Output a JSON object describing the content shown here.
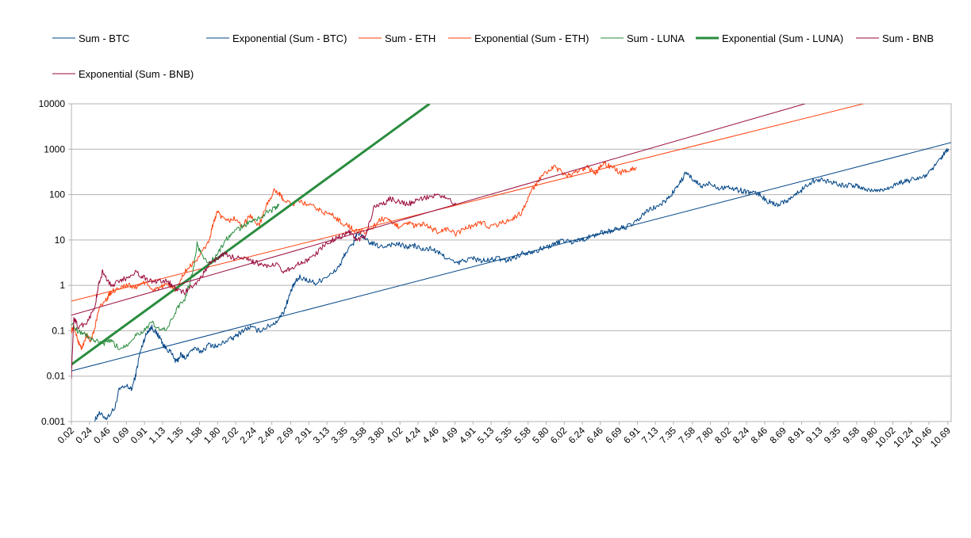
{
  "chart_data": {
    "type": "line",
    "title": "",
    "xlabel": "",
    "ylabel": "",
    "y_scale": "log",
    "ylim": [
      0.001,
      10000
    ],
    "xlim": [
      0.02,
      10.73
    ],
    "grid": "horizontal",
    "legend_position": "top",
    "y_ticks": [
      "0.001",
      "0.01",
      "0.1",
      "1",
      "10",
      "100",
      "1000",
      "10000"
    ],
    "x_ticks": [
      "0.02",
      "0.24",
      "0.46",
      "0.69",
      "0.91",
      "1.13",
      "1.35",
      "1.58",
      "1.80",
      "2.02",
      "2.24",
      "2.46",
      "2.69",
      "2.91",
      "3.13",
      "3.35",
      "3.58",
      "3.80",
      "4.02",
      "4.24",
      "4.46",
      "4.69",
      "4.91",
      "5.13",
      "5.35",
      "5.58",
      "5.80",
      "6.02",
      "6.24",
      "6.46",
      "6.69",
      "6.91",
      "7.13",
      "7.35",
      "7.58",
      "7.80",
      "8.02",
      "8.24",
      "8.46",
      "8.69",
      "8.91",
      "9.13",
      "9.35",
      "9.58",
      "9.80",
      "10.02",
      "10.24",
      "10.46",
      "10.69"
    ],
    "series": [
      {
        "name": "Sum - BTC",
        "color": "#004586",
        "kind": "data",
        "points": [
          [
            0.3,
            0.001
          ],
          [
            0.35,
            0.0015
          ],
          [
            0.45,
            0.0012
          ],
          [
            0.55,
            0.002
          ],
          [
            0.6,
            0.005
          ],
          [
            0.7,
            0.006
          ],
          [
            0.75,
            0.005
          ],
          [
            0.8,
            0.01
          ],
          [
            0.85,
            0.03
          ],
          [
            0.9,
            0.06
          ],
          [
            0.95,
            0.1
          ],
          [
            1.0,
            0.12
          ],
          [
            1.05,
            0.09
          ],
          [
            1.1,
            0.07
          ],
          [
            1.15,
            0.045
          ],
          [
            1.22,
            0.035
          ],
          [
            1.3,
            0.02
          ],
          [
            1.35,
            0.03
          ],
          [
            1.4,
            0.025
          ],
          [
            1.5,
            0.04
          ],
          [
            1.6,
            0.035
          ],
          [
            1.7,
            0.05
          ],
          [
            1.8,
            0.045
          ],
          [
            1.9,
            0.06
          ],
          [
            2.0,
            0.07
          ],
          [
            2.1,
            0.1
          ],
          [
            2.2,
            0.12
          ],
          [
            2.3,
            0.1
          ],
          [
            2.4,
            0.12
          ],
          [
            2.5,
            0.15
          ],
          [
            2.6,
            0.25
          ],
          [
            2.65,
            0.45
          ],
          [
            2.7,
            0.8
          ],
          [
            2.75,
            1.2
          ],
          [
            2.8,
            1.5
          ],
          [
            2.9,
            1.3
          ],
          [
            3.0,
            1.1
          ],
          [
            3.1,
            1.5
          ],
          [
            3.2,
            1.8
          ],
          [
            3.3,
            3
          ],
          [
            3.35,
            5
          ],
          [
            3.45,
            8
          ],
          [
            3.5,
            15
          ],
          [
            3.6,
            10
          ],
          [
            3.7,
            8
          ],
          [
            3.8,
            7
          ],
          [
            3.9,
            8
          ],
          [
            4.0,
            8
          ],
          [
            4.1,
            7
          ],
          [
            4.2,
            7.5
          ],
          [
            4.3,
            6
          ],
          [
            4.4,
            6.5
          ],
          [
            4.5,
            5
          ],
          [
            4.6,
            4
          ],
          [
            4.7,
            3
          ],
          [
            4.8,
            3.5
          ],
          [
            4.9,
            4
          ],
          [
            5.0,
            3.5
          ],
          [
            5.1,
            3.5
          ],
          [
            5.2,
            4
          ],
          [
            5.3,
            3.5
          ],
          [
            5.4,
            4
          ],
          [
            5.5,
            5
          ],
          [
            5.6,
            5.5
          ],
          [
            5.7,
            6
          ],
          [
            5.8,
            7
          ],
          [
            5.9,
            8
          ],
          [
            6.0,
            10
          ],
          [
            6.1,
            9
          ],
          [
            6.2,
            10
          ],
          [
            6.3,
            11
          ],
          [
            6.4,
            13
          ],
          [
            6.5,
            15
          ],
          [
            6.6,
            16
          ],
          [
            6.7,
            18
          ],
          [
            6.8,
            20
          ],
          [
            6.9,
            25
          ],
          [
            7.0,
            40
          ],
          [
            7.1,
            50
          ],
          [
            7.2,
            60
          ],
          [
            7.3,
            90
          ],
          [
            7.4,
            150
          ],
          [
            7.5,
            300
          ],
          [
            7.6,
            200
          ],
          [
            7.7,
            150
          ],
          [
            7.8,
            180
          ],
          [
            7.9,
            140
          ],
          [
            8.0,
            150
          ],
          [
            8.1,
            130
          ],
          [
            8.2,
            120
          ],
          [
            8.3,
            110
          ],
          [
            8.4,
            100
          ],
          [
            8.5,
            70
          ],
          [
            8.6,
            60
          ],
          [
            8.7,
            70
          ],
          [
            8.8,
            90
          ],
          [
            8.9,
            120
          ],
          [
            9.0,
            180
          ],
          [
            9.1,
            220
          ],
          [
            9.2,
            200
          ],
          [
            9.3,
            190
          ],
          [
            9.4,
            160
          ],
          [
            9.5,
            160
          ],
          [
            9.6,
            150
          ],
          [
            9.7,
            130
          ],
          [
            9.8,
            120
          ],
          [
            9.9,
            130
          ],
          [
            10.0,
            150
          ],
          [
            10.1,
            180
          ],
          [
            10.2,
            200
          ],
          [
            10.3,
            220
          ],
          [
            10.4,
            250
          ],
          [
            10.5,
            350
          ],
          [
            10.6,
            600
          ],
          [
            10.65,
            800
          ],
          [
            10.7,
            1000
          ]
        ]
      },
      {
        "name": "Exponential (Sum - BTC)",
        "color": "#004586",
        "kind": "trend",
        "points": [
          [
            0.02,
            0.013
          ],
          [
            10.73,
            1400
          ]
        ]
      },
      {
        "name": "Sum - ETH",
        "color": "#ff420e",
        "kind": "data",
        "points": [
          [
            0.02,
            0.1
          ],
          [
            0.05,
            0.12
          ],
          [
            0.1,
            0.06
          ],
          [
            0.15,
            0.04
          ],
          [
            0.2,
            0.08
          ],
          [
            0.25,
            0.06
          ],
          [
            0.3,
            0.1
          ],
          [
            0.35,
            0.3
          ],
          [
            0.45,
            0.5
          ],
          [
            0.5,
            0.7
          ],
          [
            0.6,
            0.9
          ],
          [
            0.7,
            1.0
          ],
          [
            0.8,
            0.9
          ],
          [
            0.9,
            1.2
          ],
          [
            1.0,
            0.8
          ],
          [
            1.1,
            0.9
          ],
          [
            1.2,
            1.0
          ],
          [
            1.3,
            0.8
          ],
          [
            1.4,
            2
          ],
          [
            1.5,
            3
          ],
          [
            1.6,
            5
          ],
          [
            1.7,
            10
          ],
          [
            1.75,
            25
          ],
          [
            1.8,
            40
          ],
          [
            1.9,
            25
          ],
          [
            2.0,
            30
          ],
          [
            2.1,
            20
          ],
          [
            2.2,
            35
          ],
          [
            2.3,
            20
          ],
          [
            2.4,
            60
          ],
          [
            2.5,
            130
          ],
          [
            2.55,
            100
          ],
          [
            2.6,
            80
          ],
          [
            2.7,
            60
          ],
          [
            2.8,
            70
          ],
          [
            2.9,
            60
          ],
          [
            3.0,
            50
          ],
          [
            3.1,
            40
          ],
          [
            3.2,
            35
          ],
          [
            3.3,
            25
          ],
          [
            3.4,
            20
          ],
          [
            3.5,
            15
          ],
          [
            3.6,
            15
          ],
          [
            3.7,
            20
          ],
          [
            3.8,
            30
          ],
          [
            3.9,
            25
          ],
          [
            4.0,
            20
          ],
          [
            4.1,
            25
          ],
          [
            4.2,
            20
          ],
          [
            4.3,
            22
          ],
          [
            4.4,
            18
          ],
          [
            4.5,
            15
          ],
          [
            4.6,
            18
          ],
          [
            4.7,
            13
          ],
          [
            4.8,
            18
          ],
          [
            4.9,
            20
          ],
          [
            5.0,
            25
          ],
          [
            5.1,
            20
          ],
          [
            5.2,
            22
          ],
          [
            5.3,
            25
          ],
          [
            5.4,
            30
          ],
          [
            5.5,
            40
          ],
          [
            5.6,
            100
          ],
          [
            5.7,
            200
          ],
          [
            5.8,
            300
          ],
          [
            5.9,
            400
          ],
          [
            6.0,
            300
          ],
          [
            6.1,
            250
          ],
          [
            6.2,
            350
          ],
          [
            6.3,
            400
          ],
          [
            6.4,
            300
          ],
          [
            6.5,
            500
          ],
          [
            6.6,
            400
          ],
          [
            6.7,
            300
          ],
          [
            6.8,
            350
          ],
          [
            6.9,
            400
          ]
        ]
      },
      {
        "name": "Exponential (Sum - ETH)",
        "color": "#ff420e",
        "kind": "trend",
        "points": [
          [
            0.02,
            0.45
          ],
          [
            9.66,
            10000
          ]
        ]
      },
      {
        "name": "Sum - LUNA",
        "color": "#2a8c3e",
        "kind": "data",
        "points": [
          [
            0.02,
            0.15
          ],
          [
            0.1,
            0.1
          ],
          [
            0.2,
            0.08
          ],
          [
            0.3,
            0.06
          ],
          [
            0.4,
            0.05
          ],
          [
            0.5,
            0.06
          ],
          [
            0.6,
            0.04
          ],
          [
            0.7,
            0.05
          ],
          [
            0.8,
            0.08
          ],
          [
            0.9,
            0.1
          ],
          [
            1.0,
            0.15
          ],
          [
            1.1,
            0.1
          ],
          [
            1.2,
            0.12
          ],
          [
            1.3,
            0.3
          ],
          [
            1.4,
            0.5
          ],
          [
            1.5,
            2
          ],
          [
            1.55,
            8
          ],
          [
            1.6,
            5
          ],
          [
            1.7,
            3
          ],
          [
            1.8,
            5
          ],
          [
            1.9,
            10
          ],
          [
            2.0,
            15
          ],
          [
            2.1,
            20
          ],
          [
            2.2,
            25
          ],
          [
            2.3,
            30
          ],
          [
            2.4,
            40
          ],
          [
            2.5,
            50
          ],
          [
            2.55,
            60
          ]
        ]
      },
      {
        "name": "Exponential (Sum - LUNA)",
        "color": "#2a8c3e",
        "kind": "trend",
        "points": [
          [
            0.02,
            0.018
          ],
          [
            4.38,
            10000
          ]
        ]
      },
      {
        "name": "Sum - BNB",
        "color": "#990a3d",
        "kind": "data",
        "points": [
          [
            0.02,
            0.01
          ],
          [
            0.05,
            0.2
          ],
          [
            0.1,
            0.12
          ],
          [
            0.2,
            0.15
          ],
          [
            0.3,
            0.3
          ],
          [
            0.35,
            1
          ],
          [
            0.4,
            2
          ],
          [
            0.5,
            1
          ],
          [
            0.6,
            1.2
          ],
          [
            0.7,
            1.5
          ],
          [
            0.8,
            2
          ],
          [
            0.9,
            1.5
          ],
          [
            1.0,
            1.2
          ],
          [
            1.1,
            1.3
          ],
          [
            1.2,
            1.2
          ],
          [
            1.3,
            0.8
          ],
          [
            1.4,
            0.7
          ],
          [
            1.5,
            1
          ],
          [
            1.6,
            1.5
          ],
          [
            1.7,
            3
          ],
          [
            1.8,
            4
          ],
          [
            1.9,
            5
          ],
          [
            2.0,
            4
          ],
          [
            2.1,
            4
          ],
          [
            2.2,
            3.5
          ],
          [
            2.3,
            3
          ],
          [
            2.4,
            2.5
          ],
          [
            2.5,
            3
          ],
          [
            2.6,
            2
          ],
          [
            2.7,
            2.5
          ],
          [
            2.8,
            3
          ],
          [
            2.9,
            3.5
          ],
          [
            3.0,
            5
          ],
          [
            3.1,
            8
          ],
          [
            3.2,
            10
          ],
          [
            3.3,
            12
          ],
          [
            3.4,
            15
          ],
          [
            3.5,
            10
          ],
          [
            3.6,
            12
          ],
          [
            3.7,
            50
          ],
          [
            3.8,
            60
          ],
          [
            3.9,
            80
          ],
          [
            4.0,
            70
          ],
          [
            4.1,
            60
          ],
          [
            4.2,
            70
          ],
          [
            4.3,
            80
          ],
          [
            4.4,
            90
          ],
          [
            4.5,
            100
          ],
          [
            4.6,
            80
          ],
          [
            4.7,
            60
          ]
        ]
      },
      {
        "name": "Exponential (Sum - BNB)",
        "color": "#990a3d",
        "kind": "trend",
        "points": [
          [
            0.02,
            0.22
          ],
          [
            8.95,
            10000
          ]
        ]
      }
    ]
  }
}
